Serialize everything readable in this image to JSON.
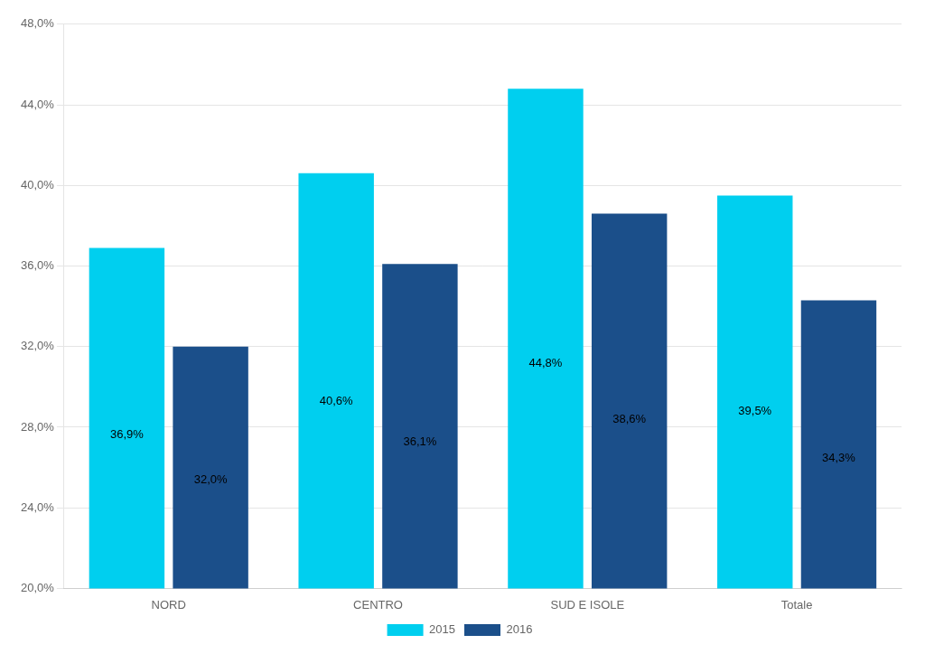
{
  "chart_data": {
    "type": "bar",
    "categories": [
      "NORD",
      "CENTRO",
      "SUD E ISOLE",
      "Totale"
    ],
    "series": [
      {
        "name": "2015",
        "color": "#00CFEF",
        "values": [
          36.9,
          40.6,
          44.8,
          39.5
        ],
        "value_labels": [
          "36,9%",
          "40,6%",
          "44,8%",
          "39,5%"
        ]
      },
      {
        "name": "2016",
        "color": "#1B4F8A",
        "values": [
          32.0,
          36.1,
          38.6,
          34.3
        ],
        "value_labels": [
          "32,0%",
          "36,1%",
          "38,6%",
          "34,3%"
        ]
      }
    ],
    "ylim": [
      20.0,
      48.0
    ],
    "yticks": [
      {
        "value": 20.0,
        "label": "20,0%"
      },
      {
        "value": 24.0,
        "label": "24,0%"
      },
      {
        "value": 28.0,
        "label": "28,0%"
      },
      {
        "value": 32.0,
        "label": "32,0%"
      },
      {
        "value": 36.0,
        "label": "36,0%"
      },
      {
        "value": 40.0,
        "label": "40,0%"
      },
      {
        "value": 44.0,
        "label": "44,0%"
      },
      {
        "value": 48.0,
        "label": "48,0%"
      }
    ],
    "grid": true,
    "legend": "bottom",
    "data_labels": true
  }
}
